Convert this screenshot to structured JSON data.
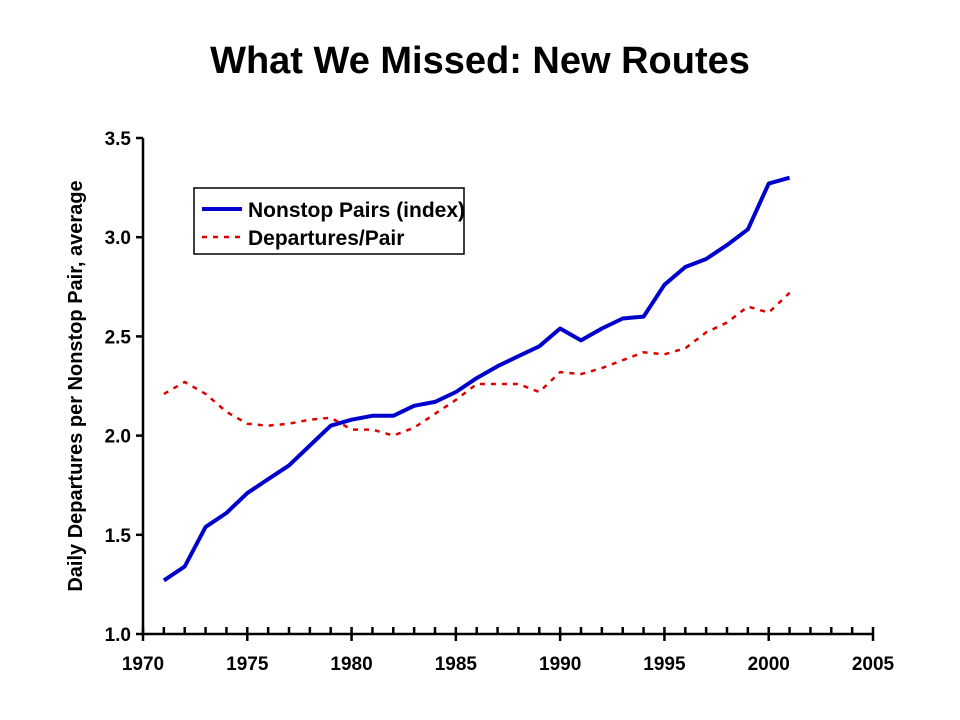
{
  "title": "What We Missed:  New Routes",
  "chart_data": {
    "type": "line",
    "title": "What We Missed:  New Routes",
    "xlabel": "",
    "ylabel": "Daily Departures per Nonstop Pair, average",
    "xlim": [
      1970,
      2005
    ],
    "ylim": [
      1.0,
      3.5
    ],
    "x_ticks": [
      1970,
      1975,
      1980,
      1985,
      1990,
      1995,
      2000,
      2005
    ],
    "y_ticks": [
      1.0,
      1.5,
      2.0,
      2.5,
      3.0,
      3.5
    ],
    "y_tick_labels": [
      "1.0",
      "1.5",
      "2.0",
      "2.5",
      "3.0",
      "3.5"
    ],
    "grid": false,
    "legend_position": "top-left",
    "x": [
      1971,
      1972,
      1973,
      1974,
      1975,
      1976,
      1977,
      1978,
      1979,
      1980,
      1981,
      1982,
      1983,
      1984,
      1985,
      1986,
      1987,
      1988,
      1989,
      1990,
      1991,
      1992,
      1993,
      1994,
      1995,
      1996,
      1997,
      1998,
      1999,
      2000,
      2001
    ],
    "series": [
      {
        "name": "Nonstop Pairs (index)",
        "color": "#0000cc",
        "style": "solid",
        "values": [
          1.27,
          1.34,
          1.54,
          1.61,
          1.71,
          1.78,
          1.85,
          1.95,
          2.05,
          2.08,
          2.1,
          2.1,
          2.15,
          2.17,
          2.22,
          2.29,
          2.35,
          2.4,
          2.45,
          2.54,
          2.48,
          2.54,
          2.59,
          2.6,
          2.76,
          2.85,
          2.89,
          2.96,
          3.04,
          3.27,
          3.3
        ]
      },
      {
        "name": "Departures/Pair",
        "color": "#dd0000",
        "style": "dashed",
        "values": [
          2.21,
          2.27,
          2.21,
          2.12,
          2.06,
          2.05,
          2.06,
          2.08,
          2.09,
          2.03,
          2.03,
          2.0,
          2.04,
          2.11,
          2.18,
          2.26,
          2.26,
          2.26,
          2.22,
          2.32,
          2.31,
          2.34,
          2.38,
          2.42,
          2.41,
          2.44,
          2.52,
          2.57,
          2.65,
          2.62,
          2.72
        ]
      }
    ]
  }
}
